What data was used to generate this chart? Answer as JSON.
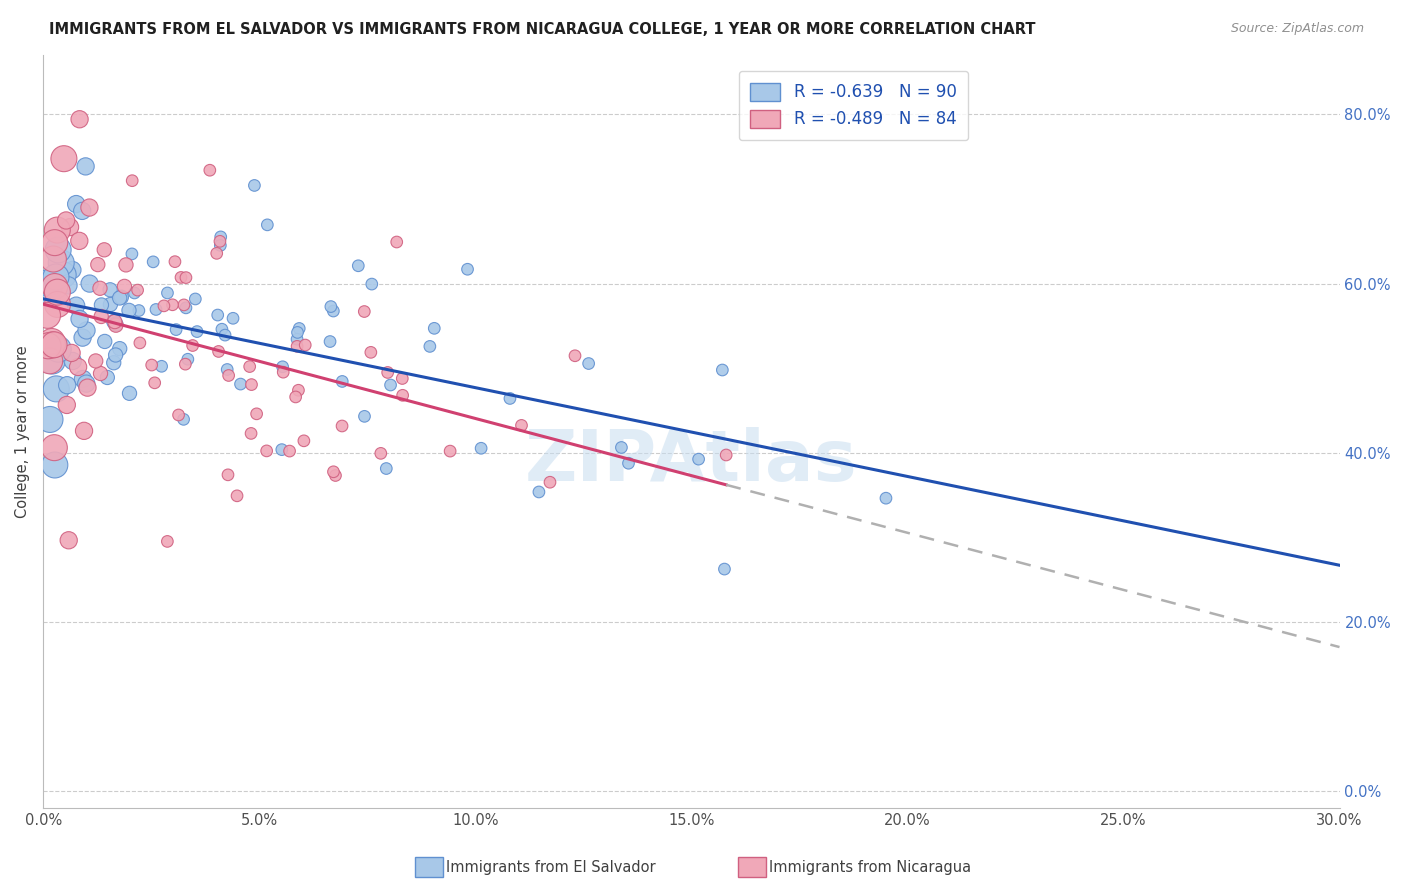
{
  "title": "IMMIGRANTS FROM EL SALVADOR VS IMMIGRANTS FROM NICARAGUA COLLEGE, 1 YEAR OR MORE CORRELATION CHART",
  "source": "Source: ZipAtlas.com",
  "xlim": [
    0.0,
    0.3
  ],
  "ylim": [
    -0.02,
    0.87
  ],
  "ylabel": "College, 1 year or more",
  "x_tick_vals": [
    0.0,
    0.05,
    0.1,
    0.15,
    0.2,
    0.25,
    0.3
  ],
  "y_tick_vals": [
    0.0,
    0.2,
    0.4,
    0.6,
    0.8
  ],
  "legend_label_es": "R = -0.639   N = 90",
  "legend_label_nic": "R = -0.489   N = 84",
  "el_salvador_color": "#a8c8e8",
  "el_salvador_edge": "#6090d0",
  "nicaragua_color": "#f0a8b8",
  "nicaragua_edge": "#d06080",
  "el_salvador_line_color": "#2050b0",
  "nicaragua_line_color": "#d04070",
  "watermark": "ZIPAtlas",
  "legend_es_label": "Immigrants from El Salvador",
  "legend_nic_label": "Immigrants from Nicaragua"
}
